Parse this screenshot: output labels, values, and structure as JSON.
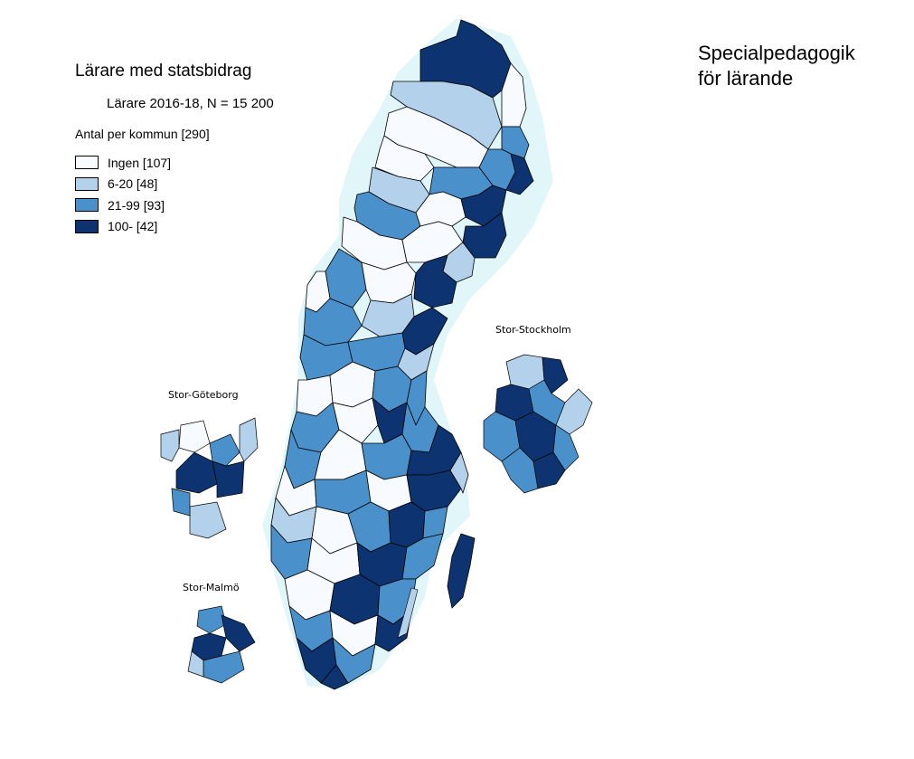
{
  "map": {
    "title": "Lärare med statsbidrag",
    "subtitle": "Lärare 2016-18, N = 15 200",
    "course_title_line1": "Specialpedagogik",
    "course_title_line2": "för lärande"
  },
  "legend": {
    "title": "Antal per kommun [290]",
    "items": [
      {
        "label": "Ingen [107]",
        "color": "#f7fbff"
      },
      {
        "label": "6-20 [48]",
        "color": "#b3d1eb"
      },
      {
        "label": "21-99 [93]",
        "color": "#4a91cc"
      },
      {
        "label": "100- [42]",
        "color": "#0d3470"
      }
    ]
  },
  "insets": {
    "stockholm": "Stor-Stockholm",
    "goteborg": "Stor-Göteborg",
    "malmo": "Stor-Malmö"
  }
}
